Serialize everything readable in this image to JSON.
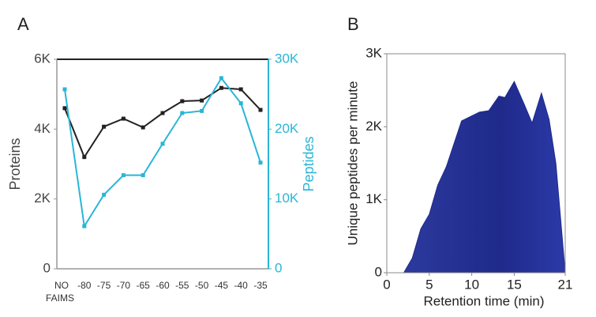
{
  "chart_data": [
    {
      "type": "line",
      "panel_label": "A",
      "categories": [
        "NO FAIMS",
        "-80",
        "-75",
        "-70",
        "-65",
        "-60",
        "-55",
        "-50",
        "-45",
        "-40",
        "-35"
      ],
      "series": [
        {
          "name": "Proteins",
          "color": "#222222",
          "values": [
            4600,
            3200,
            4070,
            4300,
            4050,
            4460,
            4800,
            4820,
            5180,
            5140,
            4550
          ]
        },
        {
          "name": "Peptides",
          "color": "#29b6d6",
          "axis": "y2",
          "values": [
            25700,
            6100,
            10600,
            13400,
            13400,
            17900,
            22300,
            22600,
            27300,
            23700,
            15200
          ]
        }
      ],
      "ylim": [
        0,
        6000
      ],
      "yticks": [
        0,
        {
          "value": 2000,
          "label": "2K"
        },
        {
          "value": 4000,
          "label": "4K"
        },
        {
          "value": 6000,
          "label": "6K"
        }
      ],
      "y2lim": [
        0,
        30000
      ],
      "y2ticks": [
        0,
        {
          "value": 10000,
          "label": "10K"
        },
        {
          "value": 20000,
          "label": "20K"
        },
        {
          "value": 30000,
          "label": "30K"
        }
      ]
    },
    {
      "type": "area",
      "panel_label": "B",
      "color": "#1f2a8a",
      "x_label": "Retention time (min)",
      "y_label": "Unique peptides per minute",
      "x": [
        2,
        3,
        4,
        5,
        6,
        7,
        8.8,
        10.9,
        12,
        13.2,
        13.9,
        15,
        16.2,
        17.1,
        18.2,
        19.1,
        19.9,
        21
      ],
      "values": [
        0,
        200,
        600,
        800,
        1200,
        1450,
        2080,
        2200,
        2220,
        2420,
        2400,
        2620,
        2300,
        2050,
        2460,
        2100,
        1500,
        0
      ],
      "xlim": [
        0,
        21
      ],
      "xticks": [
        0,
        5,
        10,
        15,
        21
      ],
      "ylim": [
        0,
        3000
      ],
      "yticks": [
        0,
        {
          "value": 1000,
          "label": "1K"
        },
        {
          "value": 2000,
          "label": "2K"
        },
        {
          "value": 3000,
          "label": "3K"
        }
      ]
    }
  ]
}
